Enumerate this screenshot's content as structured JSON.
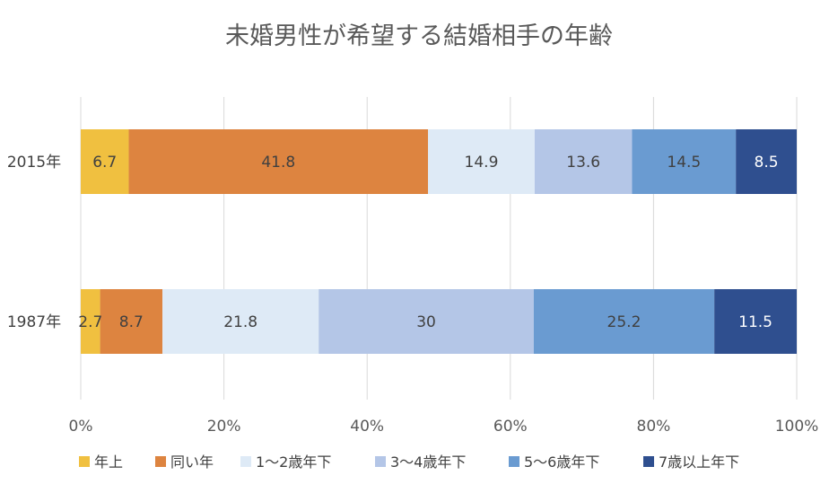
{
  "chart_data": {
    "type": "bar",
    "orientation": "horizontal",
    "stacked": "percent",
    "title": "未婚男性が希望する結婚相手の年齢",
    "categories": [
      "2015年",
      "1987年"
    ],
    "series": [
      {
        "name": "年上",
        "color": "#F0C040",
        "label_color": "#404040",
        "values": [
          6.7,
          2.7
        ],
        "labels": [
          "6.7",
          "2.7"
        ]
      },
      {
        "name": "同い年",
        "color": "#DD8440",
        "label_color": "#404040",
        "values": [
          41.8,
          8.7
        ],
        "labels": [
          "41.8",
          "8.7"
        ]
      },
      {
        "name": "1～2歳年下",
        "color": "#DEEAF6",
        "label_color": "#404040",
        "values": [
          14.9,
          21.8
        ],
        "labels": [
          "14.9",
          "21.8"
        ]
      },
      {
        "name": "3～4歳年下",
        "color": "#B4C6E7",
        "label_color": "#404040",
        "values": [
          13.6,
          30
        ],
        "labels": [
          "13.6",
          "30"
        ]
      },
      {
        "name": "5～6歳年下",
        "color": "#6A9BD1",
        "label_color": "#404040",
        "values": [
          14.5,
          25.2
        ],
        "labels": [
          "14.5",
          "25.2"
        ]
      },
      {
        "name": "7歳以上年下",
        "color": "#2F4F8F",
        "label_color": "#ffffff",
        "values": [
          8.5,
          11.5
        ],
        "labels": [
          "8.5",
          "11.5"
        ]
      }
    ],
    "xlim": [
      0,
      100
    ],
    "x_ticks": [
      "0%",
      "20%",
      "40%",
      "60%",
      "80%",
      "100%"
    ],
    "grid": "vertical",
    "legend_position": "bottom"
  }
}
